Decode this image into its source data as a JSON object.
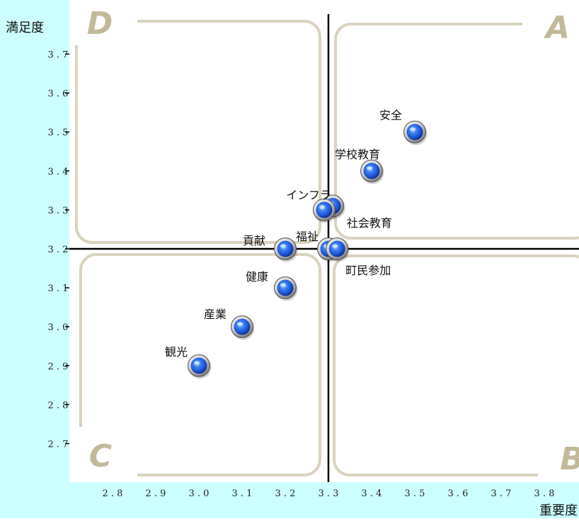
{
  "chart_data": {
    "type": "scatter",
    "xlabel": "重要度",
    "ylabel": "満足度",
    "xlim": [
      2.7,
      3.9
    ],
    "ylim": [
      2.6,
      3.77
    ],
    "x_ticks": [
      "2.8",
      "2.9",
      "3.0",
      "3.1",
      "3.2",
      "3.3",
      "3.4",
      "3.5",
      "3.6",
      "3.7",
      "3.8"
    ],
    "y_ticks": [
      "2.7",
      "2.8",
      "2.9",
      "3.0",
      "3.1",
      "3.2",
      "3.3",
      "3.4",
      "3.5",
      "3.6",
      "3.7"
    ],
    "divider": {
      "x": 3.3,
      "y": 3.2
    },
    "quadrants": [
      "A",
      "B",
      "C",
      "D"
    ],
    "points": [
      {
        "label": "安全",
        "x": 3.5,
        "y": 3.5
      },
      {
        "label": "学校教育",
        "x": 3.4,
        "y": 3.4
      },
      {
        "label": "インフラ",
        "x": 3.31,
        "y": 3.31
      },
      {
        "label": "社会教育",
        "x": 3.29,
        "y": 3.3
      },
      {
        "label": "福祉",
        "x": 3.3,
        "y": 3.2
      },
      {
        "label": "町民参加",
        "x": 3.32,
        "y": 3.2
      },
      {
        "label": "貢献",
        "x": 3.2,
        "y": 3.2
      },
      {
        "label": "健康",
        "x": 3.2,
        "y": 3.1
      },
      {
        "label": "産業",
        "x": 3.1,
        "y": 3.0
      },
      {
        "label": "観光",
        "x": 3.0,
        "y": 2.9
      }
    ],
    "grid": false,
    "colors": {
      "axis_background": "#ccffff",
      "quadrant_border": "#d9d2bd",
      "quadrant_letter": "#c2b999",
      "marker": "#1a4fd0"
    }
  }
}
